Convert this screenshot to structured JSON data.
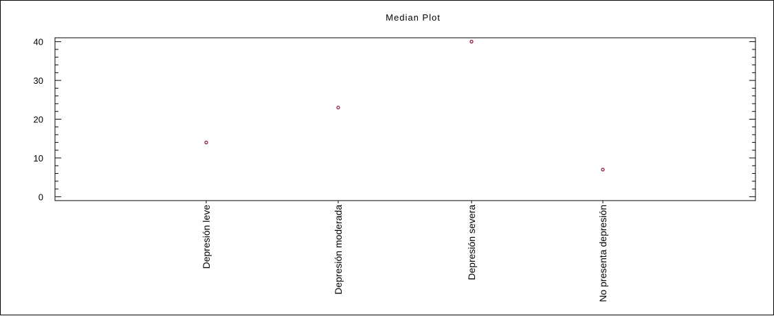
{
  "chart_data": {
    "type": "scatter",
    "title": "Median Plot",
    "xlabel": "",
    "ylabel": "",
    "categories": [
      "Depresión leve",
      "Depresión moderada",
      "Depresión severa",
      "No presenta depresión"
    ],
    "series": [
      {
        "values": [
          14,
          23,
          40,
          7
        ]
      }
    ],
    "yticks": [
      0,
      10,
      20,
      30,
      40
    ],
    "ylim": [
      -1,
      41
    ],
    "grid": false,
    "legend": "none",
    "colors": {
      "marker": "#8b0a3a",
      "axis": "#000000"
    }
  }
}
